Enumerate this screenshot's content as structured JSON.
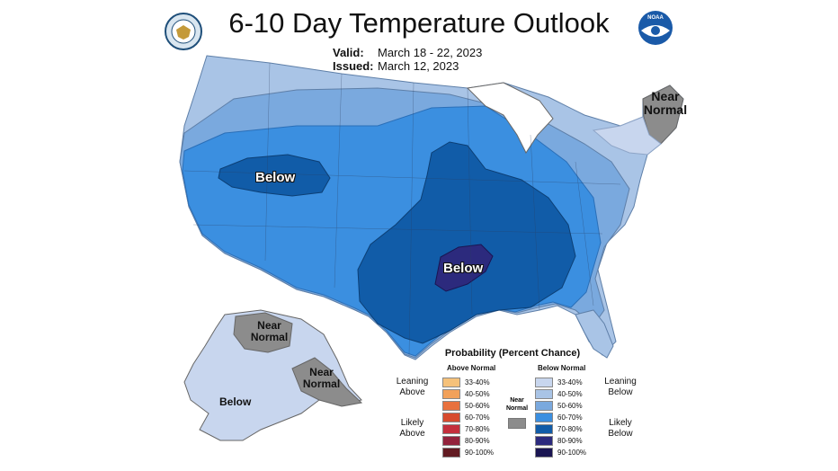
{
  "header": {
    "title": "6-10 Day Temperature Outlook",
    "valid_label": "Valid:",
    "valid_value": "March 18 - 22, 2023",
    "issued_label": "Issued:",
    "issued_value": "March 12, 2023"
  },
  "logos": {
    "left": "commerce-seal-icon",
    "right": "noaa-logo-icon",
    "noaa_text": "NOAA"
  },
  "map_labels": {
    "northeast": "Near Normal",
    "west": "Below",
    "central": "Below",
    "alaska_nw": "Near Normal",
    "alaska_se": "Near Normal",
    "alaska_sw": "Below"
  },
  "legend": {
    "title": "Probability (Percent Chance)",
    "above_header": "Above Normal",
    "below_header": "Below Normal",
    "near_normal": "Near Normal",
    "leaning_above": "Leaning Above",
    "likely_above": "Likely Above",
    "leaning_below": "Leaning Below",
    "likely_below": "Likely Below",
    "above": [
      {
        "range": "33-40%",
        "color": "#f5c17a"
      },
      {
        "range": "40-50%",
        "color": "#f2a15a"
      },
      {
        "range": "50-60%",
        "color": "#e8713e"
      },
      {
        "range": "60-70%",
        "color": "#d74b2e"
      },
      {
        "range": "70-80%",
        "color": "#c42f3c"
      },
      {
        "range": "80-90%",
        "color": "#93233c"
      },
      {
        "range": "90-100%",
        "color": "#621b22"
      }
    ],
    "below": [
      {
        "range": "33-40%",
        "color": "#c8d6ee"
      },
      {
        "range": "40-50%",
        "color": "#a9c4e6"
      },
      {
        "range": "50-60%",
        "color": "#7aa9de"
      },
      {
        "range": "60-70%",
        "color": "#3b8fe0"
      },
      {
        "range": "70-80%",
        "color": "#115ca8"
      },
      {
        "range": "80-90%",
        "color": "#2c2a7d"
      },
      {
        "range": "90-100%",
        "color": "#1a1552"
      }
    ],
    "near_normal_color": "#8c8c8c"
  }
}
